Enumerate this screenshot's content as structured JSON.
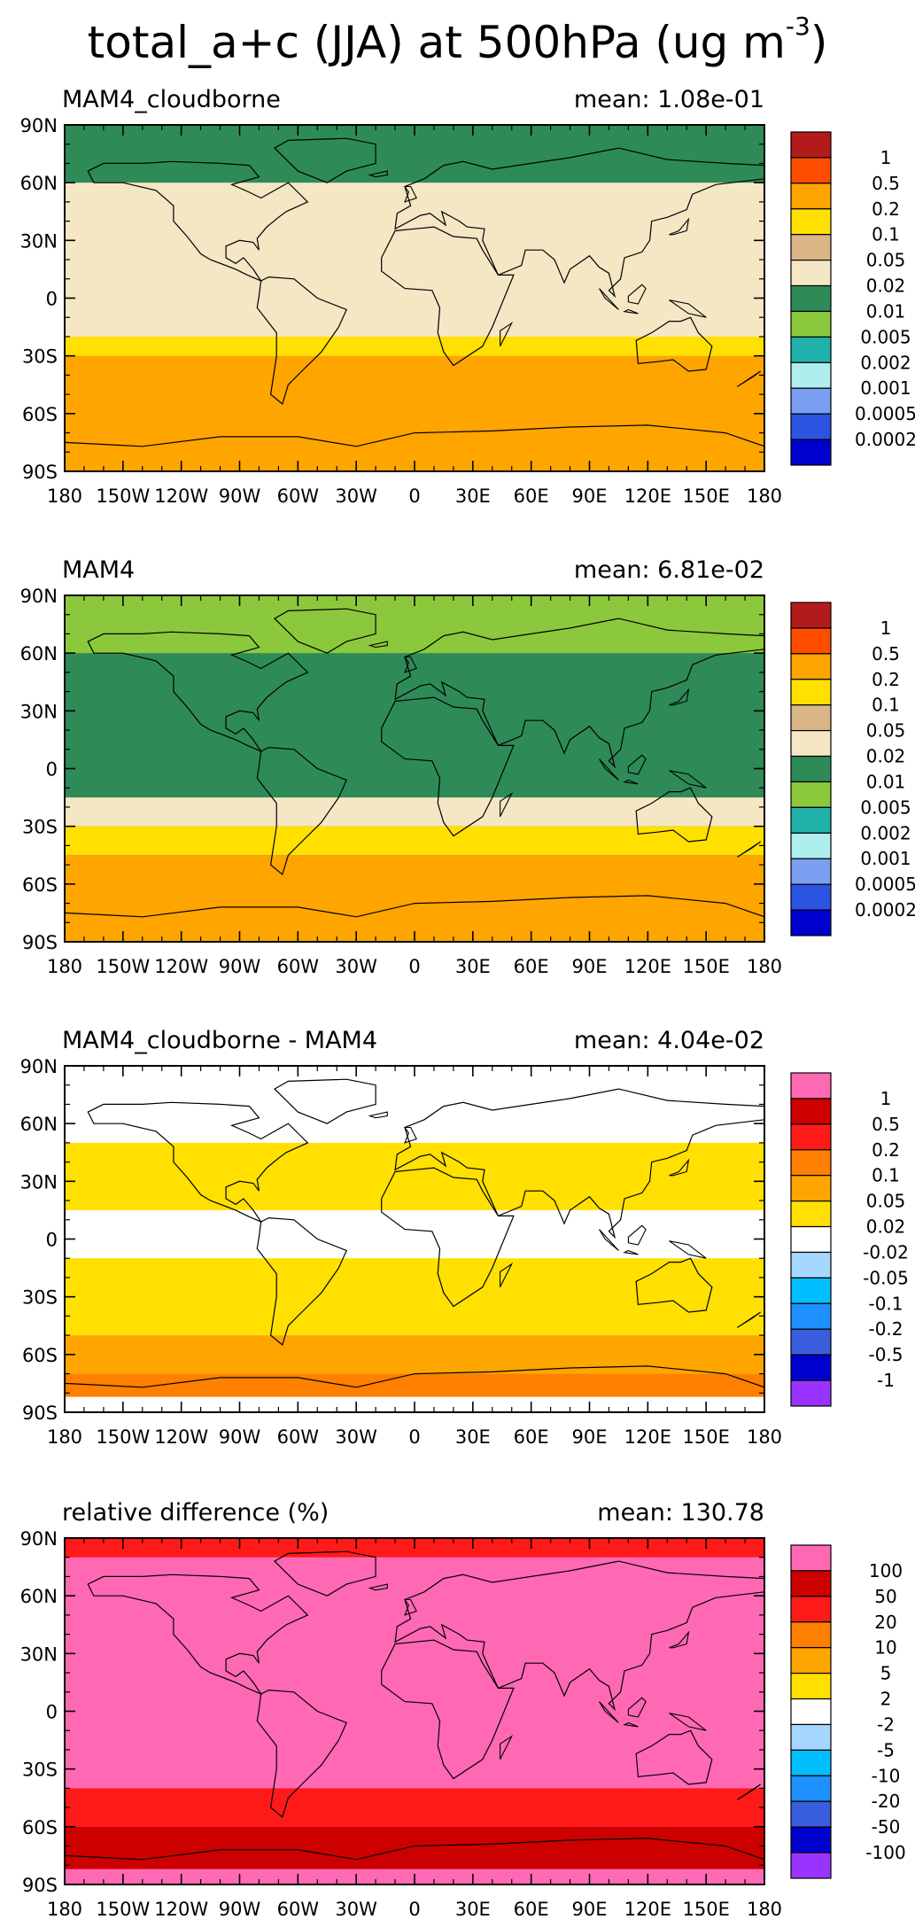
{
  "title": {
    "main": "total_a+c (JJA) at 500hPa (ug m",
    "superscript": "-3",
    "close": ")"
  },
  "axes": {
    "lat_ticks": [
      "90N",
      "60N",
      "30N",
      "0",
      "30S",
      "60S",
      "90S"
    ],
    "lon_ticks": [
      "180",
      "150W",
      "120W",
      "90W",
      "60W",
      "30W",
      "0",
      "30E",
      "60E",
      "90E",
      "120E",
      "150E",
      "180"
    ]
  },
  "panels": [
    {
      "name": "MAM4_cloudborne",
      "mean": "mean: 1.08e-01",
      "base_color": "#f5e6c4",
      "legend": [
        "1",
        "0.5",
        "0.2",
        "0.1",
        "0.05",
        "0.02",
        "0.01",
        "0.005",
        "0.002",
        "0.001",
        "0.0005",
        "0.0002"
      ],
      "colors": [
        "#b31b1b",
        "#ff4d00",
        "#ffa500",
        "#ffe000",
        "#dab687",
        "#f5e6c4",
        "#2e8b57",
        "#8cc83c",
        "#20b2aa",
        "#afeeee",
        "#7b9ff0",
        "#2b55e0",
        "#0000cd"
      ],
      "bands": [
        {
          "lat": [
            60,
            90
          ],
          "color": "#2e8b57"
        },
        {
          "lat": [
            -30,
            -20
          ],
          "color": "#ffe000"
        },
        {
          "lat": [
            -90,
            -30
          ],
          "color": "#ffa500"
        }
      ]
    },
    {
      "name": "MAM4",
      "mean": "mean: 6.81e-02",
      "base_color": "#2e8b57",
      "legend": [
        "1",
        "0.5",
        "0.2",
        "0.1",
        "0.05",
        "0.02",
        "0.01",
        "0.005",
        "0.002",
        "0.001",
        "0.0005",
        "0.0002"
      ],
      "colors": [
        "#b31b1b",
        "#ff4d00",
        "#ffa500",
        "#ffe000",
        "#dab687",
        "#f5e6c4",
        "#2e8b57",
        "#8cc83c",
        "#20b2aa",
        "#afeeee",
        "#7b9ff0",
        "#2b55e0",
        "#0000cd"
      ],
      "bands": [
        {
          "lat": [
            60,
            90
          ],
          "color": "#8cc83c"
        },
        {
          "lat": [
            -30,
            -15
          ],
          "color": "#f5e6c4"
        },
        {
          "lat": [
            -45,
            -30
          ],
          "color": "#ffe000"
        },
        {
          "lat": [
            -90,
            -45
          ],
          "color": "#ffa500"
        }
      ]
    },
    {
      "name": "MAM4_cloudborne - MAM4",
      "mean": "mean: 4.04e-02",
      "base_color": "#ffffff",
      "legend": [
        "1",
        "0.5",
        "0.2",
        "0.1",
        "0.05",
        "0.02",
        "-0.02",
        "-0.05",
        "-0.1",
        "-0.2",
        "-0.5",
        "-1"
      ],
      "colors": [
        "#ff69b4",
        "#cd0000",
        "#ff1a1a",
        "#ff7f00",
        "#ffa500",
        "#ffe000",
        "#ffffff",
        "#a6d8ff",
        "#00bfff",
        "#1e90ff",
        "#3a5fdc",
        "#0000cd",
        "#9933ff"
      ],
      "bands": [
        {
          "lat": [
            15,
            50
          ],
          "color": "#ffe000"
        },
        {
          "lat": [
            -50,
            -10
          ],
          "color": "#ffe000"
        },
        {
          "lat": [
            -70,
            -50
          ],
          "color": "#ffa500"
        },
        {
          "lat": [
            -82,
            -70
          ],
          "color": "#ff7f00"
        }
      ]
    },
    {
      "name": "relative difference (%)",
      "mean": "mean: 130.78",
      "base_color": "#ff69b4",
      "legend": [
        "100",
        "50",
        "20",
        "10",
        "5",
        "2",
        "-2",
        "-5",
        "-10",
        "-20",
        "-50",
        "-100"
      ],
      "colors": [
        "#ff69b4",
        "#cd0000",
        "#ff1a1a",
        "#ff7f00",
        "#ffa500",
        "#ffe000",
        "#ffffff",
        "#a6d8ff",
        "#00bfff",
        "#1e90ff",
        "#3a5fdc",
        "#0000cd",
        "#9933ff"
      ],
      "bands": [
        {
          "lat": [
            80,
            90
          ],
          "color": "#ff1a1a"
        },
        {
          "lat": [
            -60,
            -40
          ],
          "color": "#ff1a1a"
        },
        {
          "lat": [
            -82,
            -60
          ],
          "color": "#cd0000"
        }
      ]
    }
  ]
}
